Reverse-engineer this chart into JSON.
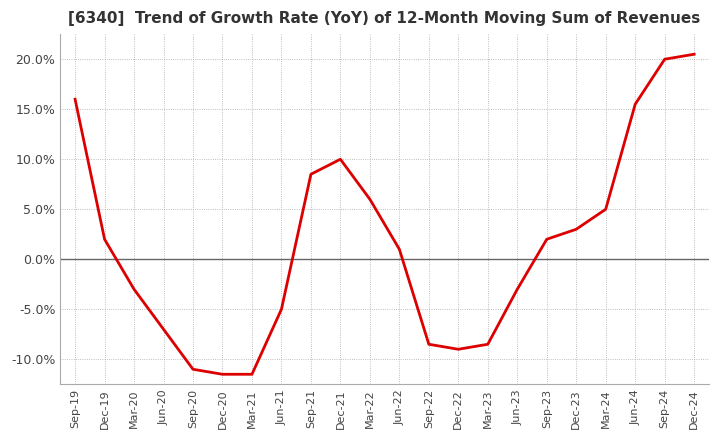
{
  "title": "[6340]  Trend of Growth Rate (YoY) of 12-Month Moving Sum of Revenues",
  "title_fontsize": 11,
  "title_color": "#333333",
  "line_color": "#dd0000",
  "background_color": "#ffffff",
  "grid_color": "#aaaaaa",
  "zero_line_color": "#666666",
  "ylim": [
    -0.125,
    0.225
  ],
  "yticks": [
    -0.1,
    -0.05,
    0.0,
    0.05,
    0.1,
    0.15,
    0.2
  ],
  "x_labels": [
    "Sep-19",
    "Dec-19",
    "Mar-20",
    "Jun-20",
    "Sep-20",
    "Dec-20",
    "Mar-21",
    "Jun-21",
    "Sep-21",
    "Dec-21",
    "Mar-22",
    "Jun-22",
    "Sep-22",
    "Dec-22",
    "Mar-23",
    "Jun-23",
    "Sep-23",
    "Dec-23",
    "Mar-24",
    "Jun-24",
    "Sep-24",
    "Dec-24"
  ],
  "y_values": [
    0.16,
    0.02,
    -0.03,
    -0.07,
    -0.11,
    -0.115,
    -0.115,
    -0.05,
    0.085,
    0.1,
    0.06,
    0.01,
    -0.085,
    -0.09,
    -0.085,
    -0.03,
    0.02,
    0.03,
    0.05,
    0.155,
    0.2,
    0.205
  ]
}
